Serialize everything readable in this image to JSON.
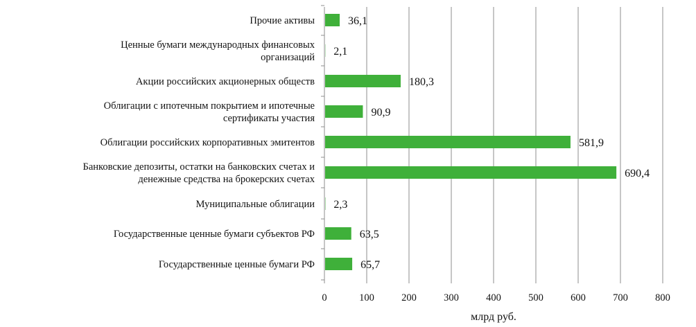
{
  "chart_data": {
    "type": "bar",
    "orientation": "horizontal",
    "categories": [
      "Прочие активы",
      "Ценные бумаги международных финансовых организаций",
      "Акции российских акционерных обществ",
      "Облигации с ипотечным покрытием и ипотечные сертификаты участия",
      "Облигации российских корпоративных эмитентов",
      "Банковские депозиты, остатки на банковских счетах и денежные средства на брокерских счетах",
      "Муниципальные облигации",
      "Государственные ценные бумаги субъектов РФ",
      "Государственные ценные бумаги РФ"
    ],
    "category_lines": [
      [
        "Прочие активы"
      ],
      [
        "Ценные бумаги международных финансовых",
        "организаций"
      ],
      [
        "Акции российских акционерных обществ"
      ],
      [
        "Облигации с ипотечным покрытием и ипотечные",
        "сертификаты участия"
      ],
      [
        "Облигации российских корпоративных эмитентов"
      ],
      [
        "Банковские депозиты, остатки на банковских счетах и",
        "денежные средства на брокерских счетах"
      ],
      [
        "Муниципальные облигации"
      ],
      [
        "Государственные ценные бумаги субъектов РФ"
      ],
      [
        "Государственные ценные бумаги РФ"
      ]
    ],
    "values": [
      36.1,
      2.1,
      180.3,
      90.9,
      581.9,
      690.4,
      2.3,
      63.5,
      65.7
    ],
    "value_labels": [
      "36,1",
      "2,1",
      "180,3",
      "90,9",
      "581,9",
      "690,4",
      "2,3",
      "63,5",
      "65,7"
    ],
    "xlabel": "млрд руб.",
    "xlim": [
      0,
      800
    ],
    "xticks": [
      0,
      100,
      200,
      300,
      400,
      500,
      600,
      700,
      800
    ],
    "grid": "vertical",
    "bar_color": "#3fb03a"
  }
}
